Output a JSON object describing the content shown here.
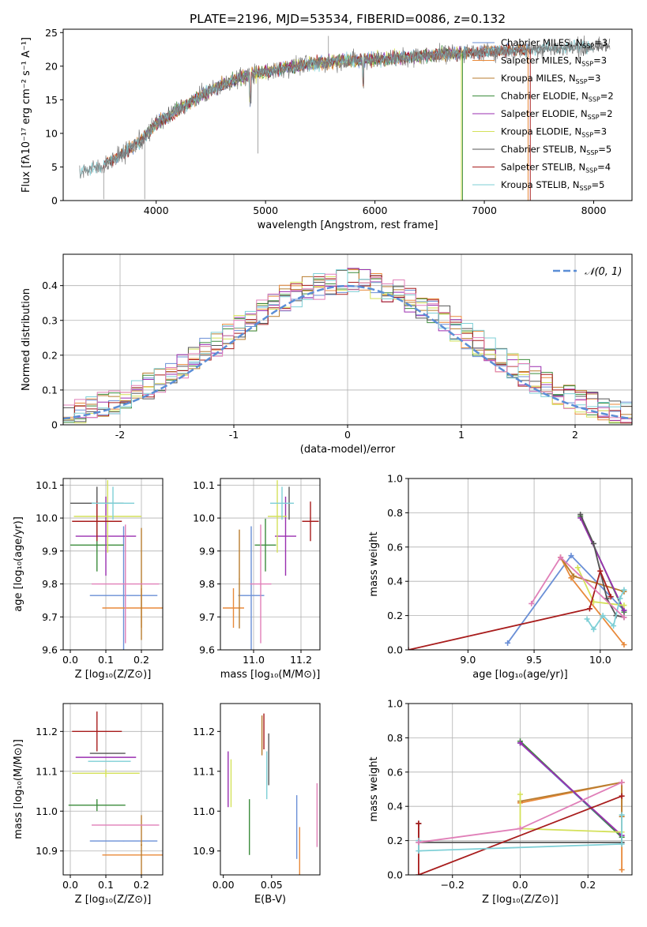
{
  "figure": {
    "title": "PLATE=2196, MJD=53534, FIBERID=0086, z=0.132"
  },
  "colors": {
    "Chabrier MILES": "#6a8fd6",
    "Salpeter MILES": "#e8893a",
    "Kroupa MILES": "#b87d2f",
    "Chabrier ELODIE": "#3c8c3c",
    "Salpeter ELODIE": "#9a2fb0",
    "Kroupa ELODIE": "#d4e15a",
    "Chabrier STELIB": "#555555",
    "Salpeter STELIB": "#a81c1c",
    "Kroupa STELIB": "#7ecfd6",
    "pink": "#e07fb8",
    "normal": "#5b8ed6"
  },
  "chart_data": [
    {
      "id": "spectrum",
      "type": "line",
      "xlabel": "wavelength [Angstrom, rest frame]",
      "ylabel": "Flux [fλ10⁻¹⁷ erg cm⁻² s⁻¹ A⁻¹]",
      "xlim": [
        3150,
        8350
      ],
      "ylim": [
        0,
        25.5
      ],
      "xticks": [
        4000,
        5000,
        6000,
        7000,
        8000
      ],
      "yticks": [
        0,
        5,
        10,
        15,
        20,
        25
      ],
      "grid": false,
      "legend_position": "upper right",
      "legend": [
        {
          "label": "Chabrier MILES, N",
          "sub": "SSP",
          "suffix": "=3",
          "color": "#6a8fd6"
        },
        {
          "label": "Salpeter MILES, N",
          "sub": "SSP",
          "suffix": "=3",
          "color": "#e8893a"
        },
        {
          "label": "Kroupa MILES, N",
          "sub": "SSP",
          "suffix": "=3",
          "color": "#b87d2f"
        },
        {
          "label": "Chabrier ELODIE, N",
          "sub": "SSP",
          "suffix": "=2",
          "color": "#3c8c3c"
        },
        {
          "label": "Salpeter ELODIE, N",
          "sub": "SSP",
          "suffix": "=2",
          "color": "#9a2fb0"
        },
        {
          "label": "Kroupa ELODIE, N",
          "sub": "SSP",
          "suffix": "=3",
          "color": "#d4e15a"
        },
        {
          "label": "Chabrier STELIB, N",
          "sub": "SSP",
          "suffix": "=5",
          "color": "#555555"
        },
        {
          "label": "Salpeter STELIB, N",
          "sub": "SSP",
          "suffix": "=4",
          "color": "#a81c1c"
        },
        {
          "label": "Kroupa STELIB, N",
          "sub": "SSP",
          "suffix": "=5",
          "color": "#7ecfd6"
        }
      ],
      "continuum": {
        "x": [
          3300,
          3500,
          3700,
          3900,
          4000,
          4200,
          4500,
          4800,
          5100,
          5400,
          5700,
          6000,
          6300,
          6600,
          6900,
          7200,
          7500,
          7800,
          8100
        ],
        "y": [
          4.3,
          5.0,
          7.0,
          9.5,
          11.5,
          13.5,
          16.5,
          18.5,
          19.5,
          20.3,
          20.8,
          21.0,
          21.3,
          21.8,
          22.0,
          22.3,
          22.6,
          22.8,
          23.0
        ]
      },
      "observed_range": [
        3300,
        8150
      ],
      "model_ranges": [
        {
          "color": "#6a8fd6",
          "x": [
            3550,
            7400
          ]
        },
        {
          "color": "#e8893a",
          "x": [
            3550,
            7400
          ]
        },
        {
          "color": "#b87d2f",
          "x": [
            3550,
            7400
          ]
        },
        {
          "color": "#3c8c3c",
          "x": [
            3900,
            6800
          ]
        },
        {
          "color": "#9a2fb0",
          "x": [
            3900,
            6800
          ]
        },
        {
          "color": "#d4e15a",
          "x": [
            3900,
            6800
          ]
        },
        {
          "color": "#555555",
          "x": [
            3520,
            8150
          ]
        },
        {
          "color": "#a81c1c",
          "x": [
            3520,
            7420
          ]
        },
        {
          "color": "#7ecfd6",
          "x": [
            3300,
            8000
          ]
        }
      ]
    },
    {
      "id": "residuals",
      "type": "bar",
      "xlabel": "(data-model)/error",
      "ylabel": "Normed distribution",
      "xlim": [
        -2.5,
        2.5
      ],
      "ylim": [
        0,
        0.49
      ],
      "xticks": [
        -2,
        -1,
        0,
        1,
        2
      ],
      "yticks": [
        0.0,
        0.1,
        0.2,
        0.3,
        0.4
      ],
      "grid": true,
      "legend_position": "upper right",
      "legend_label": "𝒩(0, 1)",
      "normal": {
        "mean": 0,
        "sigma": 1
      },
      "histogram_bins": 50,
      "histogram_range": [
        -2.5,
        2.5
      ],
      "histogram_colors": [
        "#6a8fd6",
        "#e8893a",
        "#b87d2f",
        "#3c8c3c",
        "#9a2fb0",
        "#d4e15a",
        "#555555",
        "#a81c1c",
        "#7ecfd6",
        "#e07fb8"
      ]
    },
    {
      "id": "age_vs_Z",
      "type": "scatter",
      "xlabel": "Z [log₁₀(Z/Z⊙)]",
      "ylabel": "age  [log₁₀(age/yr)]",
      "xlim": [
        -0.02,
        0.26
      ],
      "ylim": [
        9.6,
        10.12
      ],
      "xticks": [
        0.0,
        0.1,
        0.2
      ],
      "xticklabels": [
        "0.0",
        "0.1",
        "0.2"
      ],
      "yticks": [
        9.6,
        9.7,
        9.8,
        9.9,
        10.0,
        10.1
      ],
      "yticklabels": [
        "9.6",
        "9.7",
        "9.8",
        "9.9",
        "10.0",
        "10.1"
      ],
      "grid": true,
      "points": [
        {
          "x": 0.15,
          "y": 9.765,
          "xerr": 0.095,
          "yerr": 0.21,
          "color": "#6a8fd6"
        },
        {
          "x": 0.2,
          "y": 9.727,
          "xerr": 0.11,
          "yerr": 0.06,
          "color": "#e8893a"
        },
        {
          "x": 0.2,
          "y": 9.8,
          "xerr": 0.002,
          "yerr": 0.17,
          "color": "#b87d2f"
        },
        {
          "x": 0.075,
          "y": 9.918,
          "xerr": 0.075,
          "yerr": 0.08,
          "color": "#3c8c3c"
        },
        {
          "x": 0.1,
          "y": 9.945,
          "xerr": 0.085,
          "yerr": 0.12,
          "color": "#9a2fb0"
        },
        {
          "x": 0.105,
          "y": 10.005,
          "xerr": 0.095,
          "yerr": 0.11,
          "color": "#d4e15a"
        },
        {
          "x": 0.075,
          "y": 10.045,
          "xerr": 0.075,
          "yerr": 0.05,
          "color": "#555555"
        },
        {
          "x": 0.075,
          "y": 9.99,
          "xerr": 0.07,
          "yerr": 0.06,
          "color": "#a81c1c"
        },
        {
          "x": 0.12,
          "y": 10.045,
          "xerr": 0.06,
          "yerr": 0.05,
          "color": "#7ecfd6"
        },
        {
          "x": 0.155,
          "y": 9.8,
          "xerr": 0.095,
          "yerr": 0.18,
          "color": "#e07fb8"
        }
      ]
    },
    {
      "id": "age_vs_mass",
      "type": "scatter",
      "xlabel": "mass [log₁₀(M/M⊙)]",
      "ylabel": "",
      "xlim": [
        10.86,
        11.28
      ],
      "ylim": [
        9.6,
        10.12
      ],
      "xticks": [
        11.0,
        11.2
      ],
      "xticklabels": [
        "11.0",
        "11.2"
      ],
      "yticks": [
        9.6,
        9.7,
        9.8,
        9.9,
        10.0,
        10.1
      ],
      "yticklabels": [
        "9.6",
        "9.7",
        "9.8",
        "9.9",
        "10.0",
        "10.1"
      ],
      "grid": true,
      "points": [
        {
          "x": 10.99,
          "y": 9.765,
          "xerr": 0.055,
          "yerr": 0.21,
          "color": "#6a8fd6"
        },
        {
          "x": 10.915,
          "y": 9.727,
          "xerr": 0.045,
          "yerr": 0.06,
          "color": "#e8893a"
        },
        {
          "x": 10.94,
          "y": 9.815,
          "xerr": 0.002,
          "yerr": 0.15,
          "color": "#b87d2f"
        },
        {
          "x": 11.05,
          "y": 9.918,
          "xerr": 0.045,
          "yerr": 0.08,
          "color": "#3c8c3c"
        },
        {
          "x": 11.135,
          "y": 9.945,
          "xerr": 0.045,
          "yerr": 0.12,
          "color": "#9a2fb0"
        },
        {
          "x": 11.1,
          "y": 10.005,
          "xerr": 0.04,
          "yerr": 0.11,
          "color": "#d4e15a"
        },
        {
          "x": 11.15,
          "y": 10.045,
          "xerr": 0.002,
          "yerr": 0.05,
          "color": "#555555"
        },
        {
          "x": 11.24,
          "y": 9.99,
          "xerr": 0.035,
          "yerr": 0.06,
          "color": "#a81c1c"
        },
        {
          "x": 11.12,
          "y": 10.045,
          "xerr": 0.05,
          "yerr": 0.05,
          "color": "#7ecfd6"
        },
        {
          "x": 11.03,
          "y": 9.8,
          "xerr": 0.045,
          "yerr": 0.18,
          "color": "#e07fb8"
        }
      ]
    },
    {
      "id": "weight_vs_age",
      "type": "line",
      "xlabel": "age  [log₁₀(age/yr)]",
      "ylabel": "mass weight",
      "xlim": [
        8.55,
        10.24
      ],
      "ylim": [
        0,
        1.0
      ],
      "xticks": [
        9.0,
        9.5,
        10.0
      ],
      "xticklabels": [
        "9.0",
        "9.5",
        "10.0"
      ],
      "yticks": [
        0.0,
        0.2,
        0.4,
        0.6,
        0.8,
        1.0
      ],
      "yticklabels": [
        "0.0",
        "0.2",
        "0.4",
        "0.6",
        "0.8",
        "1.0"
      ],
      "grid": true,
      "series": [
        {
          "color": "#6a8fd6",
          "x": [
            9.3,
            9.78,
            10.18
          ],
          "y": [
            0.04,
            0.55,
            0.23
          ]
        },
        {
          "color": "#e8893a",
          "x": [
            9.7,
            9.78,
            10.18
          ],
          "y": [
            0.54,
            0.42,
            0.03
          ]
        },
        {
          "color": "#b87d2f",
          "x": [
            9.7,
            9.8,
            10.18
          ],
          "y": [
            0.54,
            0.43,
            0.34
          ]
        },
        {
          "color": "#3c8c3c",
          "x": [
            9.85,
            10.18
          ],
          "y": [
            0.78,
            0.22
          ]
        },
        {
          "color": "#9a2fb0",
          "x": [
            9.85,
            10.18
          ],
          "y": [
            0.77,
            0.23
          ]
        },
        {
          "color": "#d4e15a",
          "x": [
            9.83,
            9.95,
            10.18
          ],
          "y": [
            0.48,
            0.28,
            0.26
          ]
        },
        {
          "color": "#555555",
          "x": [
            9.85,
            9.95,
            10.05,
            10.12,
            10.18
          ],
          "y": [
            0.79,
            0.62,
            0.3,
            0.2,
            0.19
          ]
        },
        {
          "color": "#a81c1c",
          "x": [
            8.55,
            9.92,
            10.0,
            10.08
          ],
          "y": [
            0.0,
            0.24,
            0.46,
            0.31
          ]
        },
        {
          "color": "#7ecfd6",
          "x": [
            9.9,
            9.95,
            10.02,
            10.1,
            10.15,
            10.18
          ],
          "y": [
            0.18,
            0.12,
            0.2,
            0.14,
            0.3,
            0.35
          ]
        },
        {
          "color": "#e07fb8",
          "x": [
            9.48,
            9.7,
            10.18
          ],
          "y": [
            0.27,
            0.54,
            0.19
          ]
        }
      ]
    },
    {
      "id": "mass_vs_Z",
      "type": "scatter",
      "xlabel": "Z [log₁₀(Z/Z⊙)]",
      "ylabel": "mass [log₁₀(M/M⊙)]",
      "xlim": [
        -0.02,
        0.26
      ],
      "ylim": [
        10.84,
        11.27
      ],
      "xticks": [
        0.0,
        0.1,
        0.2
      ],
      "xticklabels": [
        "0.0",
        "0.1",
        "0.2"
      ],
      "yticks": [
        10.9,
        11.0,
        11.1,
        11.2
      ],
      "yticklabels": [
        "10.9",
        "11.0",
        "11.1",
        "11.2"
      ],
      "grid": true,
      "points": [
        {
          "x": 0.15,
          "y": 10.925,
          "xerr": 0.095,
          "yerr": 0.001,
          "color": "#6a8fd6"
        },
        {
          "x": 0.2,
          "y": 10.89,
          "xerr": 0.11,
          "yerr": 0.001,
          "color": "#e8893a"
        },
        {
          "x": 0.2,
          "y": 10.915,
          "xerr": 0.002,
          "yerr": 0.075,
          "color": "#b87d2f"
        },
        {
          "x": 0.075,
          "y": 11.015,
          "xerr": 0.08,
          "yerr": 0.015,
          "color": "#3c8c3c"
        },
        {
          "x": 0.1,
          "y": 11.135,
          "xerr": 0.085,
          "yerr": 0.001,
          "color": "#9a2fb0"
        },
        {
          "x": 0.1,
          "y": 11.095,
          "xerr": 0.095,
          "yerr": 0.01,
          "color": "#d4e15a"
        },
        {
          "x": 0.105,
          "y": 11.145,
          "xerr": 0.05,
          "yerr": 0.001,
          "color": "#555555"
        },
        {
          "x": 0.075,
          "y": 11.2,
          "xerr": 0.07,
          "yerr": 0.05,
          "color": "#a81c1c"
        },
        {
          "x": 0.11,
          "y": 11.125,
          "xerr": 0.06,
          "yerr": 0.001,
          "color": "#7ecfd6"
        },
        {
          "x": 0.155,
          "y": 10.965,
          "xerr": 0.095,
          "yerr": 0.001,
          "color": "#e07fb8"
        }
      ]
    },
    {
      "id": "mass_vs_ebv",
      "type": "scatter",
      "xlabel": "E(B-V)",
      "ylabel": "",
      "xlim": [
        -0.003,
        0.1
      ],
      "ylim": [
        10.84,
        11.27
      ],
      "xticks": [
        0.0,
        0.05
      ],
      "xticklabels": [
        "0.00",
        "0.05"
      ],
      "yticks": [
        10.9,
        11.0,
        11.1,
        11.2
      ],
      "yticklabels": [
        "10.9",
        "11.0",
        "11.1",
        "11.2"
      ],
      "grid": false,
      "points": [
        {
          "x": 0.076,
          "y": 10.96,
          "yerr": 0.08,
          "color": "#6a8fd6"
        },
        {
          "x": 0.079,
          "y": 10.9,
          "yerr": 0.06,
          "color": "#e8893a"
        },
        {
          "x": 0.04,
          "y": 11.19,
          "yerr": 0.05,
          "color": "#b87d2f"
        },
        {
          "x": 0.027,
          "y": 10.96,
          "yerr": 0.07,
          "color": "#3c8c3c"
        },
        {
          "x": 0.005,
          "y": 11.08,
          "yerr": 0.07,
          "color": "#9a2fb0"
        },
        {
          "x": 0.008,
          "y": 11.07,
          "yerr": 0.06,
          "color": "#d4e15a"
        },
        {
          "x": 0.047,
          "y": 11.13,
          "yerr": 0.065,
          "color": "#555555"
        },
        {
          "x": 0.042,
          "y": 11.2,
          "yerr": 0.045,
          "color": "#a81c1c"
        },
        {
          "x": 0.045,
          "y": 11.09,
          "yerr": 0.06,
          "color": "#7ecfd6"
        },
        {
          "x": 0.097,
          "y": 10.99,
          "yerr": 0.08,
          "color": "#e07fb8"
        }
      ]
    },
    {
      "id": "weight_vs_Z",
      "type": "line",
      "xlabel": "Z [log₁₀(Z/Z⊙)]",
      "ylabel": "mass weight",
      "xlim": [
        -0.33,
        0.33
      ],
      "ylim": [
        0,
        1.0
      ],
      "xticks": [
        -0.2,
        0.0,
        0.2
      ],
      "xticklabels": [
        "−0.2",
        "0.0",
        "0.2"
      ],
      "yticks": [
        0.0,
        0.2,
        0.4,
        0.6,
        0.8,
        1.0
      ],
      "yticklabels": [
        "0.0",
        "0.2",
        "0.4",
        "0.6",
        "0.8",
        "1.0"
      ],
      "grid": true,
      "series": [
        {
          "color": "#6a8fd6",
          "x": [
            0.0,
            0.3
          ],
          "y": [
            0.77,
            0.22
          ]
        },
        {
          "color": "#e8893a",
          "x": [
            0.0,
            0.3,
            0.3
          ],
          "y": [
            0.42,
            0.54,
            0.03
          ]
        },
        {
          "color": "#b87d2f",
          "x": [
            0.0,
            0.3,
            0.3
          ],
          "y": [
            0.43,
            0.54,
            0.34
          ]
        },
        {
          "color": "#3c8c3c",
          "x": [
            0.0,
            0.3
          ],
          "y": [
            0.78,
            0.22
          ]
        },
        {
          "color": "#9a2fb0",
          "x": [
            0.0,
            0.3
          ],
          "y": [
            0.77,
            0.23
          ]
        },
        {
          "color": "#d4e15a",
          "x": [
            0.0,
            0.0,
            0.3
          ],
          "y": [
            0.47,
            0.27,
            0.25
          ]
        },
        {
          "color": "#555555",
          "x": [
            -0.3,
            -0.3,
            0.3
          ],
          "y": [
            0.3,
            0.19,
            0.19
          ]
        },
        {
          "color": "#a81c1c",
          "x": [
            -0.3,
            -0.3,
            0.3
          ],
          "y": [
            0.3,
            0.0,
            0.46
          ]
        },
        {
          "color": "#7ecfd6",
          "x": [
            -0.3,
            -0.3,
            0.3,
            0.3
          ],
          "y": [
            0.2,
            0.14,
            0.18,
            0.35
          ]
        },
        {
          "color": "#e07fb8",
          "x": [
            -0.3,
            0.0,
            0.3
          ],
          "y": [
            0.19,
            0.27,
            0.54
          ]
        }
      ]
    }
  ]
}
